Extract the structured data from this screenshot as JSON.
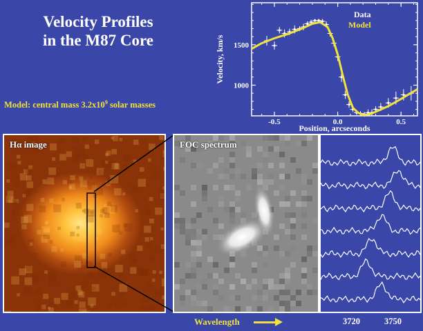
{
  "title": {
    "line1": "Velocity Profiles",
    "line2": "in the M87 Core"
  },
  "model_note": {
    "prefix": "Model: central mass 3.2x10",
    "exponent": "9",
    "suffix": " solar masses"
  },
  "chart_data": {
    "type": "scatter",
    "xlabel": "Position, arcseconds",
    "ylabel": "Velocity, km/s",
    "xlim": [
      -0.68,
      0.63
    ],
    "ylim": [
      620,
      2020
    ],
    "x_ticks": [
      -0.5,
      0.0,
      0.5
    ],
    "x_tick_labels": [
      "-0.5",
      "0.0",
      "0.5"
    ],
    "y_ticks": [
      1000,
      1500
    ],
    "y_tick_labels": [
      "1000",
      "1500"
    ],
    "legend": {
      "position": "top-right",
      "entries": [
        "Data",
        "Model"
      ]
    },
    "colors": {
      "data": "#ffffff",
      "model": "#f2e33a",
      "plot_bg": "#3a46a8",
      "accent": "#f2e33a"
    },
    "series": [
      {
        "name": "Data",
        "x": [
          -0.56,
          -0.5,
          -0.46,
          -0.42,
          -0.38,
          -0.34,
          -0.3,
          -0.27,
          -0.24,
          -0.21,
          -0.18,
          -0.15,
          -0.12,
          -0.09,
          -0.06,
          -0.03,
          0.0,
          0.03,
          0.06,
          0.09,
          0.12,
          0.15,
          0.18,
          0.21,
          0.24,
          0.27,
          0.3,
          0.34,
          0.4,
          0.46,
          0.52,
          0.58
        ],
        "y": [
          1550,
          1490,
          1680,
          1640,
          1660,
          1690,
          1700,
          1720,
          1760,
          1780,
          1800,
          1800,
          1790,
          1750,
          1640,
          1520,
          1350,
          1100,
          880,
          760,
          700,
          660,
          650,
          640,
          660,
          660,
          700,
          730,
          780,
          840,
          880,
          900
        ],
        "err": [
          60,
          50,
          40,
          50,
          40,
          50,
          30,
          40,
          30,
          30,
          20,
          20,
          30,
          40,
          40,
          40,
          50,
          60,
          50,
          40,
          30,
          30,
          30,
          30,
          40,
          40,
          40,
          50,
          60,
          80,
          70,
          90
        ]
      },
      {
        "name": "Model",
        "type": "line",
        "x": [
          -0.68,
          -0.6,
          -0.5,
          -0.4,
          -0.3,
          -0.2,
          -0.14,
          -0.08,
          -0.04,
          0.0,
          0.04,
          0.08,
          0.12,
          0.16,
          0.2,
          0.25,
          0.3,
          0.4,
          0.5,
          0.63
        ],
        "y": [
          1450,
          1520,
          1580,
          1630,
          1690,
          1760,
          1780,
          1720,
          1580,
          1380,
          1120,
          880,
          720,
          660,
          630,
          640,
          670,
          740,
          830,
          950
        ]
      }
    ],
    "spectra_ticks": [
      3720,
      3750
    ],
    "spectra_wavelength_range": [
      3696,
      3768
    ]
  },
  "panels": {
    "halpha_label": "Hα image",
    "foc_label": "FOC spectrum",
    "wavelength_label": "Wavelength"
  }
}
